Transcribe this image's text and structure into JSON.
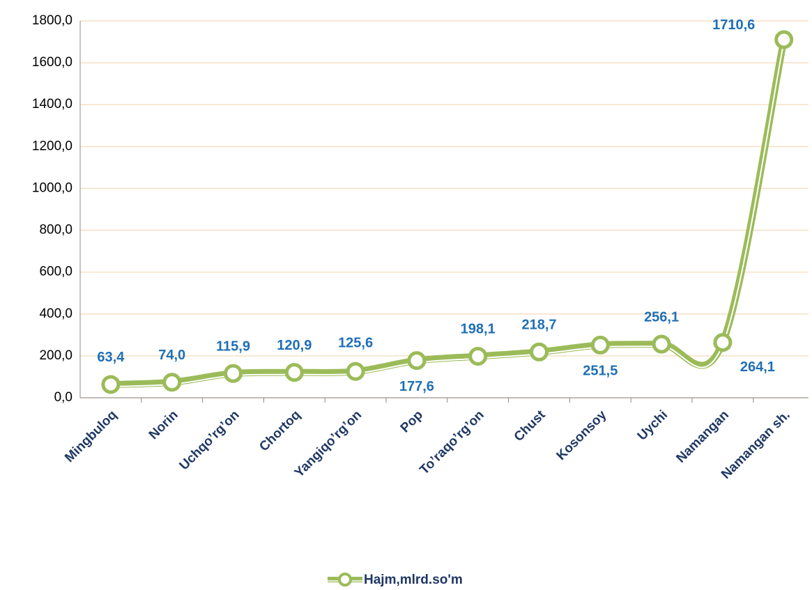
{
  "chart_data": {
    "type": "line",
    "categories": [
      "Mingbuloq",
      "Norin",
      "Uchqo’rg’on",
      "Chortoq",
      "Yangiqo’rg’on",
      "Pop",
      "To’raqo’rg’on",
      "Chust",
      "Kosonsoy",
      "Uychi",
      "Namangan",
      "Namangan sh."
    ],
    "series": [
      {
        "name": "Hajm,mlrd.so'm",
        "color": "#9bbb59",
        "values": [
          63.4,
          74.0,
          115.9,
          120.9,
          125.6,
          177.6,
          198.1,
          218.7,
          251.5,
          256.1,
          264.1,
          1710.6
        ],
        "value_labels": [
          "63,4",
          "74,0",
          "115,9",
          "120,9",
          "125,6",
          "177,6",
          "198,1",
          "218,7",
          "251,5",
          "256,1",
          "264,1",
          "1710,6"
        ]
      }
    ],
    "ylim": [
      0,
      1800
    ],
    "yticks": [
      {
        "value": 0,
        "label": "0,0"
      },
      {
        "value": 200,
        "label": "200,0"
      },
      {
        "value": 400,
        "label": "400,0"
      },
      {
        "value": 600,
        "label": "600,0"
      },
      {
        "value": 800,
        "label": "800,0"
      },
      {
        "value": 1000,
        "label": "1000,0"
      },
      {
        "value": 1200,
        "label": "1200,0"
      },
      {
        "value": 1400,
        "label": "1400,0"
      },
      {
        "value": 1600,
        "label": "1600,0"
      },
      {
        "value": 1800,
        "label": "1800,0"
      }
    ],
    "grid": true,
    "legend": "bottom",
    "smooth": true
  }
}
